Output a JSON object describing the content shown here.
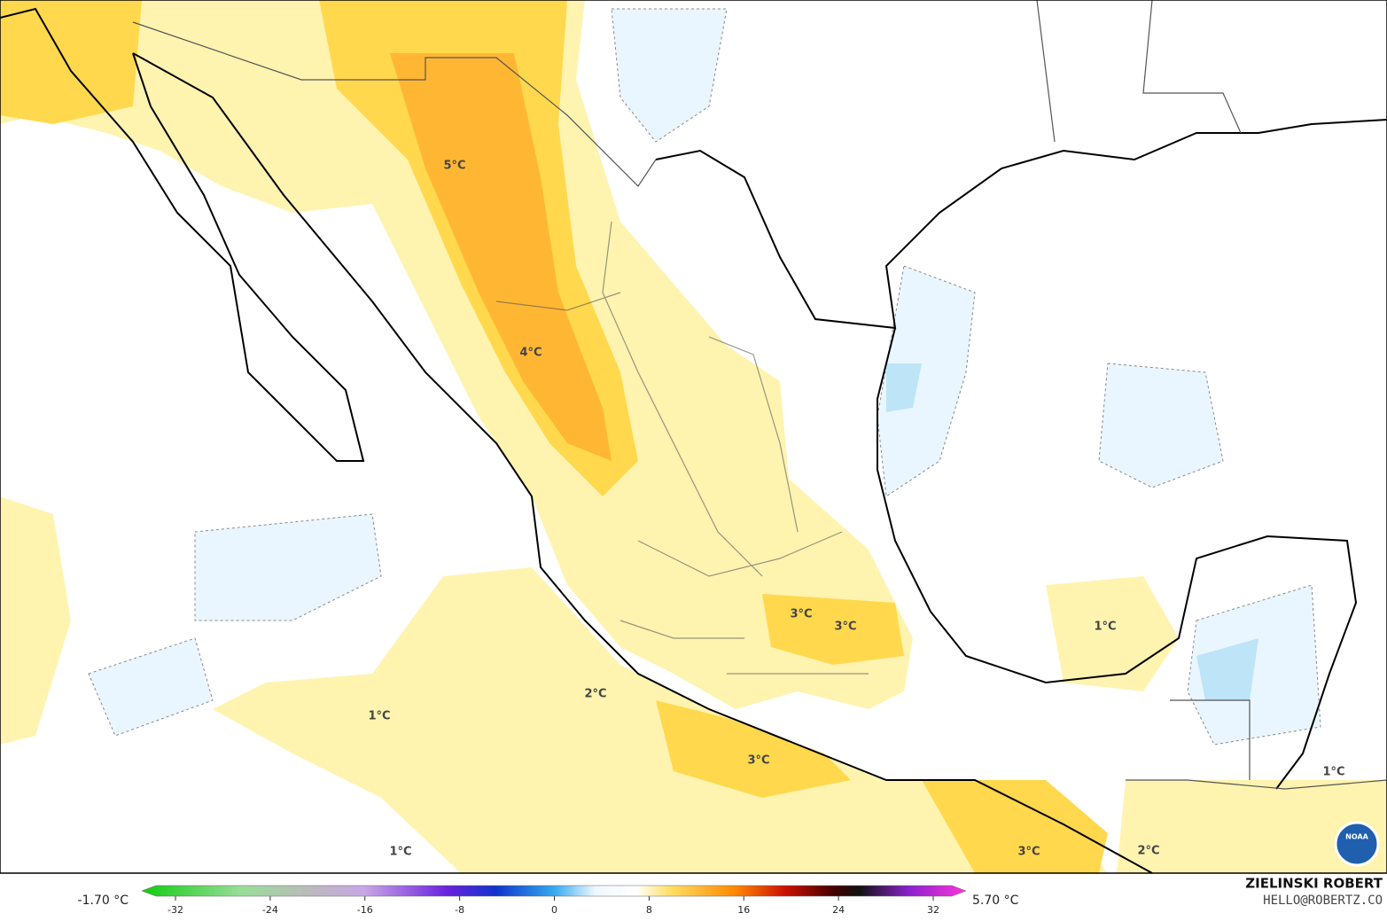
{
  "map": {
    "labels": [
      "5°C",
      "4°C",
      "3°C",
      "3°C",
      "1°C",
      "2°C",
      "1°C",
      "3°C",
      "1°C",
      "1°C",
      "3°C",
      "2°C"
    ],
    "colorbar": {
      "min_label": "-1.70 °C",
      "max_label": "5.70 °C",
      "ticks": [
        -32,
        -24,
        -16,
        -8,
        0,
        8,
        16,
        24,
        32
      ]
    },
    "credit": {
      "name": "ZIELINSKI ROBERT",
      "email": "HELLO@ROBERTZ.CO"
    },
    "logo": "NOAA"
  }
}
